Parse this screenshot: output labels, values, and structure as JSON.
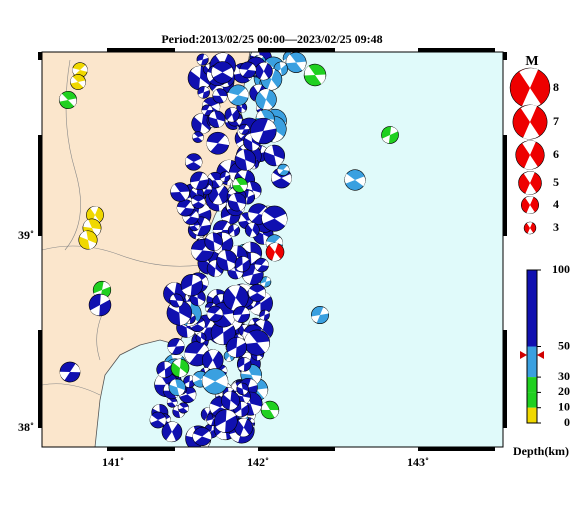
{
  "title": "Period:2013/02/25 00:00—2023/02/25 09:48",
  "axes": {
    "x_labels": [
      "141˚",
      "142˚",
      "143˚"
    ],
    "y_labels": [
      "39˚",
      "38˚"
    ]
  },
  "legend": {
    "title": "M",
    "magnitudes": [
      8,
      7,
      6,
      5,
      4,
      3
    ]
  },
  "depth_bar": {
    "ticks": [
      100,
      50,
      30,
      20,
      10,
      0
    ],
    "ylim": [
      0,
      100
    ],
    "label": "Depth(km)"
  }
}
